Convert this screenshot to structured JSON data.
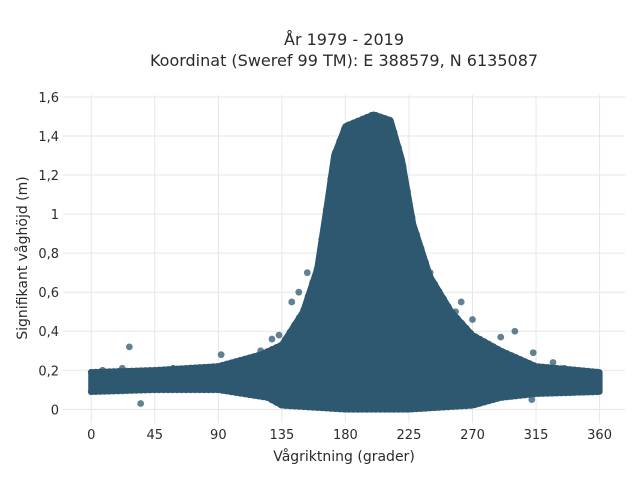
{
  "chart_data": {
    "type": "scatter",
    "title": [
      "År 1979 - 2019",
      "Koordinat (Sweref 99 TM): E 388579, N 6135087"
    ],
    "xlabel": "Vågriktning (grader)",
    "ylabel": "Signifikant våghöjd (m)",
    "xlim": [
      -20,
      378
    ],
    "ylim": [
      -0.07,
      1.61
    ],
    "xticks": [
      0,
      45,
      90,
      135,
      180,
      225,
      270,
      315,
      360
    ],
    "xtick_labels": [
      "0",
      "45",
      "90",
      "135",
      "180",
      "225",
      "270",
      "315",
      "360"
    ],
    "yticks": [
      0,
      0.2,
      0.4,
      0.6,
      0.8,
      1,
      1.2,
      1.4,
      1.6
    ],
    "ytick_labels": [
      "0",
      "0,2",
      "0,4",
      "0,6",
      "0,8",
      "1",
      "1,2",
      "1,4",
      "1,6"
    ],
    "grid": true,
    "marker_color": "#2e5870",
    "background": "#ffffff",
    "grid_color": "#e6e6e6",
    "envelope_upper": [
      {
        "x": 0,
        "y": 0.19
      },
      {
        "x": 45,
        "y": 0.2
      },
      {
        "x": 90,
        "y": 0.22
      },
      {
        "x": 120,
        "y": 0.28
      },
      {
        "x": 135,
        "y": 0.33
      },
      {
        "x": 150,
        "y": 0.5
      },
      {
        "x": 160,
        "y": 0.72
      },
      {
        "x": 167,
        "y": 1.05
      },
      {
        "x": 172,
        "y": 1.3
      },
      {
        "x": 180,
        "y": 1.45
      },
      {
        "x": 200,
        "y": 1.51
      },
      {
        "x": 212,
        "y": 1.48
      },
      {
        "x": 220,
        "y": 1.28
      },
      {
        "x": 228,
        "y": 0.95
      },
      {
        "x": 240,
        "y": 0.68
      },
      {
        "x": 255,
        "y": 0.5
      },
      {
        "x": 270,
        "y": 0.38
      },
      {
        "x": 290,
        "y": 0.3
      },
      {
        "x": 315,
        "y": 0.22
      },
      {
        "x": 345,
        "y": 0.2
      },
      {
        "x": 360,
        "y": 0.19
      }
    ],
    "envelope_lower": [
      {
        "x": 0,
        "y": 0.09
      },
      {
        "x": 45,
        "y": 0.1
      },
      {
        "x": 90,
        "y": 0.1
      },
      {
        "x": 125,
        "y": 0.06
      },
      {
        "x": 135,
        "y": 0.02
      },
      {
        "x": 180,
        "y": 0
      },
      {
        "x": 225,
        "y": 0
      },
      {
        "x": 270,
        "y": 0.02
      },
      {
        "x": 290,
        "y": 0.06
      },
      {
        "x": 315,
        "y": 0.08
      },
      {
        "x": 360,
        "y": 0.09
      }
    ],
    "outliers": [
      {
        "x": 27,
        "y": 0.32
      },
      {
        "x": 35,
        "y": 0.03
      },
      {
        "x": 92,
        "y": 0.28
      },
      {
        "x": 120,
        "y": 0.3
      },
      {
        "x": 128,
        "y": 0.36
      },
      {
        "x": 133,
        "y": 0.38
      },
      {
        "x": 142,
        "y": 0.55
      },
      {
        "x": 147,
        "y": 0.6
      },
      {
        "x": 153,
        "y": 0.7
      },
      {
        "x": 240,
        "y": 0.7
      },
      {
        "x": 262,
        "y": 0.55
      },
      {
        "x": 258,
        "y": 0.5
      },
      {
        "x": 270,
        "y": 0.46
      },
      {
        "x": 290,
        "y": 0.37
      },
      {
        "x": 300,
        "y": 0.4
      },
      {
        "x": 313,
        "y": 0.29
      },
      {
        "x": 327,
        "y": 0.24
      },
      {
        "x": 312,
        "y": 0.05
      },
      {
        "x": 8,
        "y": 0.2
      },
      {
        "x": 22,
        "y": 0.21
      },
      {
        "x": 58,
        "y": 0.21
      },
      {
        "x": 75,
        "y": 0.21
      },
      {
        "x": 100,
        "y": 0.22
      },
      {
        "x": 335,
        "y": 0.21
      }
    ]
  }
}
